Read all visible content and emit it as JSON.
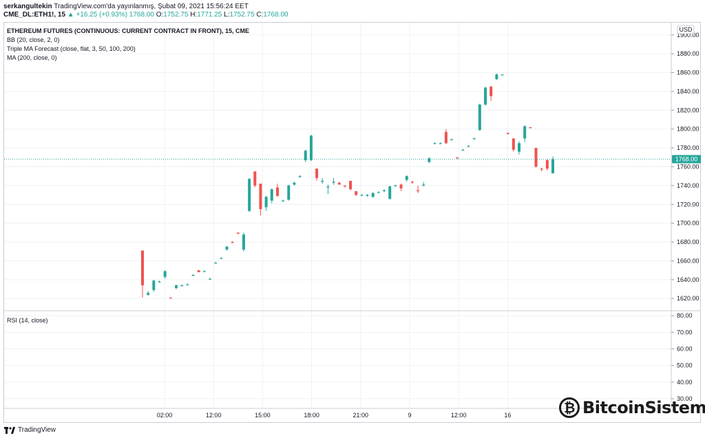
{
  "header": {
    "author": "serkangultekin",
    "published": "TradingView.com'da yayınlanmış, Şubat 09, 2021 15:56:24 EET",
    "symbol": "CME_DL:ETH1!, 15",
    "change": "▲ +16.25 (+0.93%)",
    "price": "1768.00",
    "o_label": "O:",
    "o_value": "1752.75",
    "h_label": "H:",
    "h_value": "1771.25",
    "l_label": "L:",
    "l_value": "1752.75",
    "c_label": "C:",
    "c_value": "1768.00"
  },
  "legend": {
    "title": "ETHEREUM FUTURES (CONTINUOUS: CURRENT CONTRACT IN FRONT), 15, CME",
    "bb": "BB (20, close, 2, 0)",
    "triple_ma": "Triple MA Forecast (close, flat, 3, 50, 100, 200)",
    "ma": "MA (200, close, 0)",
    "rsi": "RSI (14, close)"
  },
  "currency_badge": "USD",
  "last_price_badge": "1768.00",
  "footer_logo": "TradingView",
  "watermark": "BitcoinSistemi",
  "colors": {
    "up": "#26a69a",
    "down": "#ef5350",
    "grid": "#eef0f3",
    "price_line": "#26a69a"
  },
  "chart_data": [
    {
      "type": "candlestick",
      "title": "ETHEREUM FUTURES (CONTINUOUS: CURRENT CONTRACT IN FRONT), 15, CME",
      "ylabel": "USD",
      "ylim": [
        1607,
        1913
      ],
      "yticks": [
        1620,
        1640,
        1660,
        1680,
        1700,
        1720,
        1740,
        1760,
        1780,
        1800,
        1820,
        1840,
        1860,
        1880,
        1900
      ],
      "xticks": [
        "02:00",
        "12:00",
        "15:00",
        "18:00",
        "21:00",
        "9",
        "12:00",
        "16"
      ],
      "last_price": 1768.0,
      "candles": [
        {
          "o": 1671,
          "h": 1671,
          "l": 1621,
          "c": 1634
        },
        {
          "o": 1624,
          "h": 1628,
          "l": 1623,
          "c": 1626
        },
        {
          "o": 1629,
          "h": 1640,
          "l": 1627,
          "c": 1639
        },
        {
          "o": 1638,
          "h": 1639,
          "l": 1637,
          "c": 1638
        },
        {
          "o": 1643,
          "h": 1650,
          "l": 1641,
          "c": 1649
        },
        {
          "o": 1621,
          "h": 1621,
          "l": 1620,
          "c": 1620
        },
        {
          "o": 1631,
          "h": 1635,
          "l": 1630,
          "c": 1634
        },
        {
          "o": 1634,
          "h": 1635,
          "l": 1633,
          "c": 1634
        },
        {
          "o": 1635,
          "h": 1636,
          "l": 1634,
          "c": 1635
        },
        {
          "o": 1645,
          "h": 1646,
          "l": 1644,
          "c": 1645
        },
        {
          "o": 1650,
          "h": 1650,
          "l": 1648,
          "c": 1648
        },
        {
          "o": 1649,
          "h": 1650,
          "l": 1648,
          "c": 1649
        },
        {
          "o": 1641,
          "h": 1642,
          "l": 1640,
          "c": 1641
        },
        {
          "o": 1658,
          "h": 1659,
          "l": 1657,
          "c": 1658
        },
        {
          "o": 1663,
          "h": 1664,
          "l": 1662,
          "c": 1663
        },
        {
          "o": 1672,
          "h": 1676,
          "l": 1671,
          "c": 1675
        },
        {
          "o": 1680,
          "h": 1681,
          "l": 1679,
          "c": 1679
        },
        {
          "o": 1690,
          "h": 1690,
          "l": 1688,
          "c": 1689
        },
        {
          "o": 1672,
          "h": 1690,
          "l": 1670,
          "c": 1688
        },
        {
          "o": 1713,
          "h": 1748,
          "l": 1712,
          "c": 1747
        },
        {
          "o": 1755,
          "h": 1755,
          "l": 1738,
          "c": 1740
        },
        {
          "o": 1742,
          "h": 1742,
          "l": 1708,
          "c": 1715
        },
        {
          "o": 1717,
          "h": 1729,
          "l": 1713,
          "c": 1728
        },
        {
          "o": 1724,
          "h": 1737,
          "l": 1721,
          "c": 1736
        },
        {
          "o": 1738,
          "h": 1742,
          "l": 1728,
          "c": 1729
        },
        {
          "o": 1724,
          "h": 1725,
          "l": 1723,
          "c": 1724
        },
        {
          "o": 1725,
          "h": 1741,
          "l": 1724,
          "c": 1740
        },
        {
          "o": 1741,
          "h": 1744,
          "l": 1740,
          "c": 1743
        },
        {
          "o": 1750,
          "h": 1751,
          "l": 1748,
          "c": 1750
        },
        {
          "o": 1767,
          "h": 1778,
          "l": 1765,
          "c": 1777
        },
        {
          "o": 1767,
          "h": 1794,
          "l": 1766,
          "c": 1793
        },
        {
          "o": 1758,
          "h": 1758,
          "l": 1745,
          "c": 1748
        },
        {
          "o": 1744,
          "h": 1748,
          "l": 1742,
          "c": 1745
        },
        {
          "o": 1738,
          "h": 1741,
          "l": 1731,
          "c": 1739
        },
        {
          "o": 1743,
          "h": 1748,
          "l": 1741,
          "c": 1744
        },
        {
          "o": 1743,
          "h": 1744,
          "l": 1741,
          "c": 1741
        },
        {
          "o": 1740,
          "h": 1740,
          "l": 1738,
          "c": 1739
        },
        {
          "o": 1745,
          "h": 1745,
          "l": 1735,
          "c": 1736
        },
        {
          "o": 1734,
          "h": 1734,
          "l": 1729,
          "c": 1730
        },
        {
          "o": 1730,
          "h": 1731,
          "l": 1729,
          "c": 1730
        },
        {
          "o": 1729,
          "h": 1731,
          "l": 1728,
          "c": 1730
        },
        {
          "o": 1728,
          "h": 1733,
          "l": 1727,
          "c": 1732
        },
        {
          "o": 1733,
          "h": 1734,
          "l": 1732,
          "c": 1733
        },
        {
          "o": 1734,
          "h": 1736,
          "l": 1733,
          "c": 1735
        },
        {
          "o": 1726,
          "h": 1740,
          "l": 1725,
          "c": 1739
        },
        {
          "o": 1740,
          "h": 1741,
          "l": 1739,
          "c": 1740
        },
        {
          "o": 1741,
          "h": 1742,
          "l": 1734,
          "c": 1737
        },
        {
          "o": 1746,
          "h": 1751,
          "l": 1744,
          "c": 1750
        },
        {
          "o": 1744,
          "h": 1745,
          "l": 1742,
          "c": 1743
        },
        {
          "o": 1735,
          "h": 1740,
          "l": 1732,
          "c": 1734
        },
        {
          "o": 1740,
          "h": 1744,
          "l": 1739,
          "c": 1741
        },
        {
          "o": 1765,
          "h": 1770,
          "l": 1764,
          "c": 1769
        },
        {
          "o": 1785,
          "h": 1786,
          "l": 1784,
          "c": 1785
        },
        {
          "o": 1785,
          "h": 1786,
          "l": 1784,
          "c": 1785
        },
        {
          "o": 1797,
          "h": 1800,
          "l": 1784,
          "c": 1785
        },
        {
          "o": 1789,
          "h": 1790,
          "l": 1788,
          "c": 1789
        },
        {
          "o": 1770,
          "h": 1770,
          "l": 1768,
          "c": 1769
        },
        {
          "o": 1778,
          "h": 1779,
          "l": 1777,
          "c": 1778
        },
        {
          "o": 1782,
          "h": 1783,
          "l": 1781,
          "c": 1782
        },
        {
          "o": 1790,
          "h": 1791,
          "l": 1789,
          "c": 1790
        },
        {
          "o": 1799,
          "h": 1827,
          "l": 1798,
          "c": 1826
        },
        {
          "o": 1826,
          "h": 1845,
          "l": 1825,
          "c": 1844
        },
        {
          "o": 1845,
          "h": 1846,
          "l": 1830,
          "c": 1835
        },
        {
          "o": 1853,
          "h": 1859,
          "l": 1852,
          "c": 1858
        },
        {
          "o": 1858,
          "h": 1858,
          "l": 1857,
          "c": 1858
        },
        {
          "o": 1796,
          "h": 1796,
          "l": 1794,
          "c": 1795
        },
        {
          "o": 1790,
          "h": 1790,
          "l": 1776,
          "c": 1778
        },
        {
          "o": 1776,
          "h": 1787,
          "l": 1773,
          "c": 1785
        },
        {
          "o": 1790,
          "h": 1804,
          "l": 1786,
          "c": 1803
        },
        {
          "o": 1802,
          "h": 1802,
          "l": 1801,
          "c": 1801
        },
        {
          "o": 1780,
          "h": 1780,
          "l": 1759,
          "c": 1760
        },
        {
          "o": 1758,
          "h": 1759,
          "l": 1755,
          "c": 1757
        },
        {
          "o": 1767,
          "h": 1768,
          "l": 1756,
          "c": 1758
        },
        {
          "o": 1753,
          "h": 1771,
          "l": 1753,
          "c": 1768
        }
      ]
    },
    {
      "type": "line",
      "title": "RSI (14, close)",
      "ylim": [
        25,
        83
      ],
      "yticks": [
        30,
        40,
        50,
        60,
        70,
        80
      ],
      "series": []
    }
  ]
}
